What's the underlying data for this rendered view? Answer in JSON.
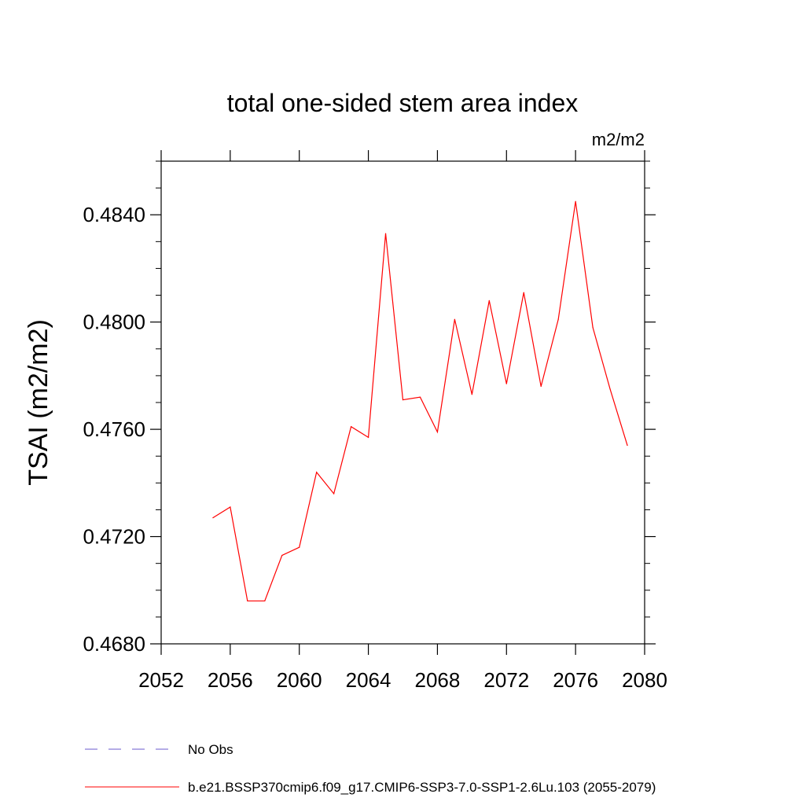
{
  "chart_data": {
    "type": "line",
    "title": "total one-sided stem area index",
    "units": "m2/m2",
    "xlabel": "",
    "ylabel": "TSAI  (m2/m2)",
    "xlim": [
      2052,
      2080
    ],
    "ylim": [
      0.468,
      0.486
    ],
    "x_ticks": [
      2052,
      2056,
      2060,
      2064,
      2068,
      2072,
      2076,
      2080
    ],
    "x_tick_labels": [
      "2052",
      "2056",
      "2060",
      "2064",
      "2068",
      "2072",
      "2076",
      "2080"
    ],
    "y_ticks": [
      0.468,
      0.472,
      0.476,
      0.48,
      0.484
    ],
    "y_tick_labels": [
      "0.4680",
      "0.4720",
      "0.4760",
      "0.4800",
      "0.4840"
    ],
    "grid": false,
    "legend_position": "bottom",
    "series": [
      {
        "name": "No Obs",
        "color": "#6a5acd",
        "dash": "dashed",
        "x": [],
        "values": []
      },
      {
        "name": "b.e21.BSSP370cmip6.f09_g17.CMIP6-SSP3-7.0-SSP1-2.6Lu.103 (2055-2079)",
        "color": "#ff0000",
        "dash": "solid",
        "x": [
          2055,
          2056,
          2057,
          2058,
          2059,
          2060,
          2061,
          2062,
          2063,
          2064,
          2065,
          2066,
          2067,
          2068,
          2069,
          2070,
          2071,
          2072,
          2073,
          2074,
          2075,
          2076,
          2077,
          2078,
          2079
        ],
        "values": [
          0.4727,
          0.4731,
          0.4696,
          0.4696,
          0.4713,
          0.4716,
          0.4744,
          0.4736,
          0.4761,
          0.4757,
          0.4833,
          0.4771,
          0.4772,
          0.4759,
          0.4801,
          0.4773,
          0.4808,
          0.4777,
          0.4811,
          0.4776,
          0.4801,
          0.4845,
          0.4798,
          0.4775,
          0.4754
        ]
      }
    ]
  }
}
